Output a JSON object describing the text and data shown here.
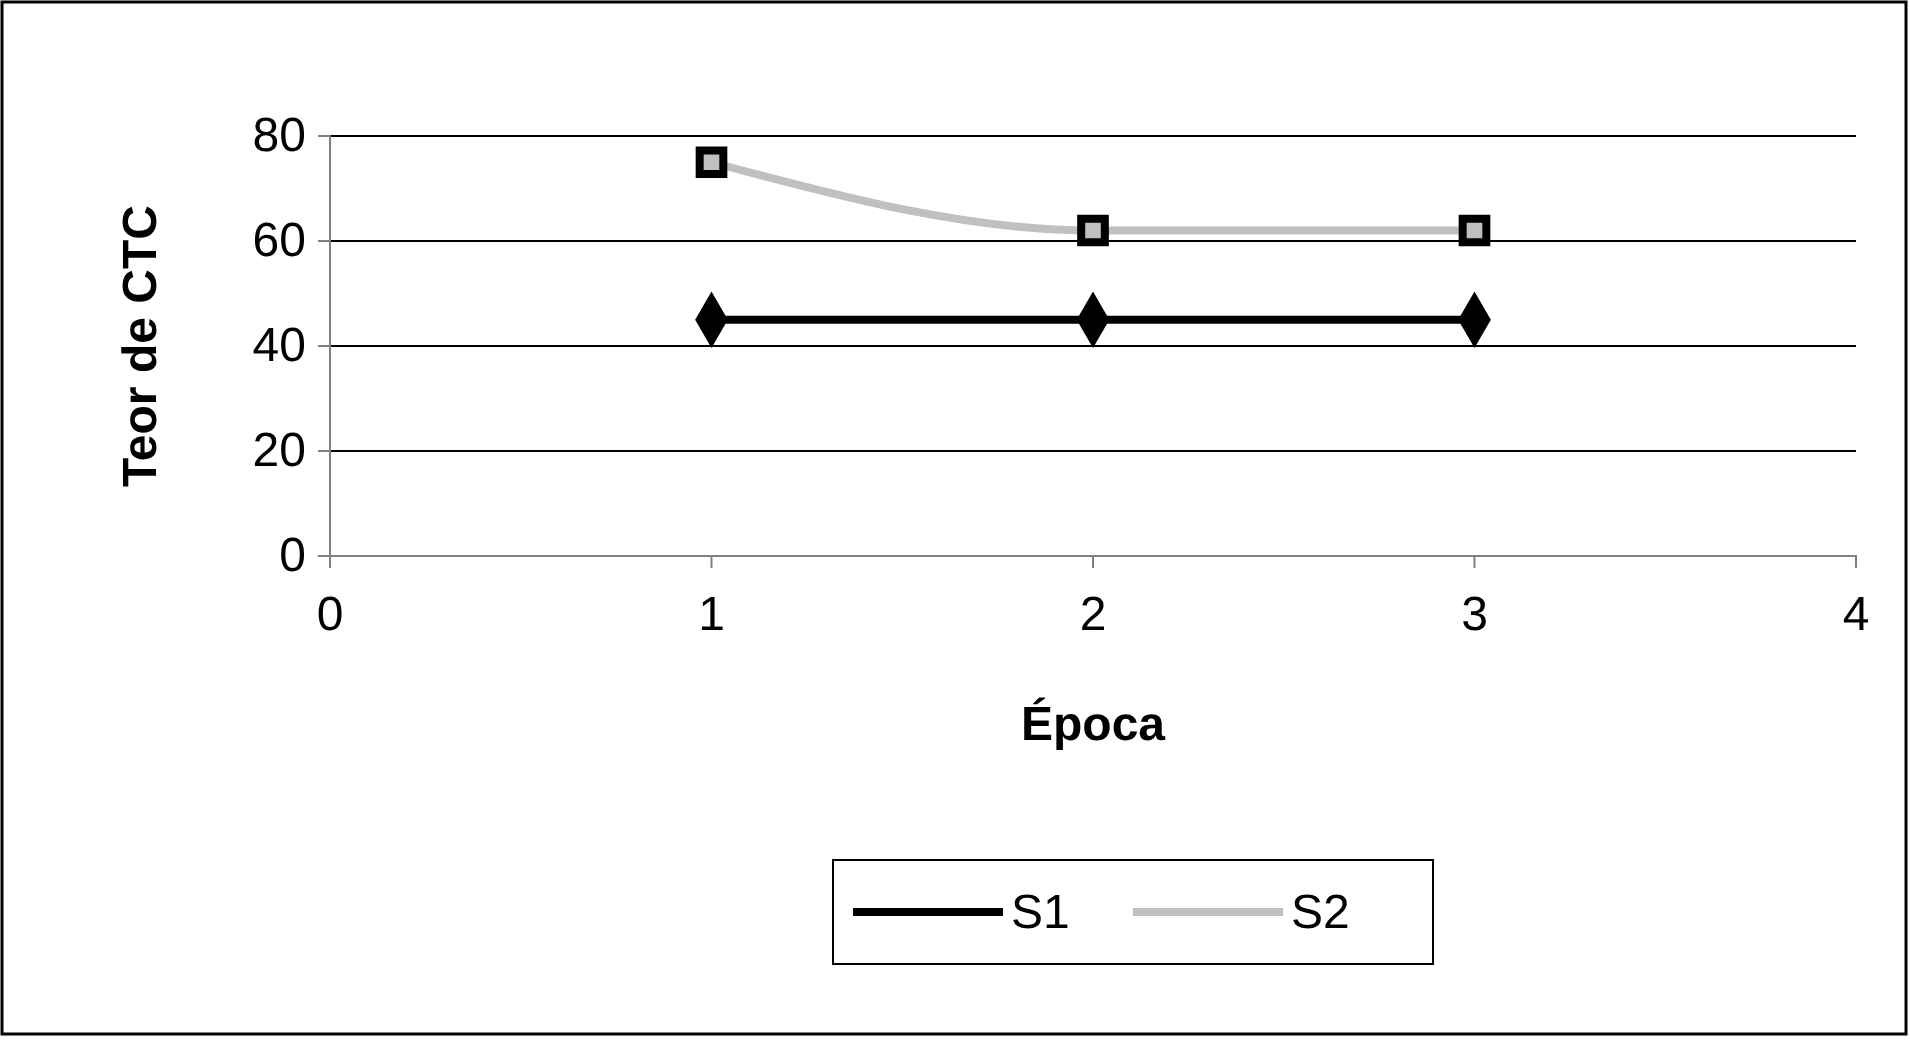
{
  "chart_data": {
    "type": "line",
    "xlabel": "Época",
    "ylabel": "Teor de CTC",
    "x": [
      1,
      2,
      3
    ],
    "xlim": [
      0,
      4
    ],
    "xticks": [
      0,
      1,
      2,
      3,
      4
    ],
    "ylim": [
      0,
      80
    ],
    "yticks": [
      0,
      20,
      40,
      60,
      80
    ],
    "grid": "y",
    "legend": "bottom",
    "series": [
      {
        "name": "S1",
        "color": "#000000",
        "values": [
          45,
          45,
          45
        ],
        "marker": "diamond"
      },
      {
        "name": "S2",
        "color": "#c0c0c0",
        "values": [
          75,
          62,
          62
        ],
        "marker": "square"
      }
    ]
  }
}
